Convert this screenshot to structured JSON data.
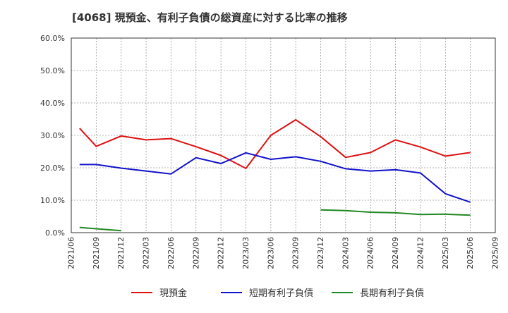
{
  "chart_data": {
    "type": "line",
    "title": "[4068]  現預金、有利子負債の総資産に対する比率の推移",
    "xlabel": "",
    "ylabel": "",
    "ylim": [
      0,
      60
    ],
    "y_ticks": [
      "0.0%",
      "10.0%",
      "20.0%",
      "30.0%",
      "40.0%",
      "50.0%",
      "60.0%"
    ],
    "y_tick_values": [
      0,
      10,
      20,
      30,
      40,
      50,
      60
    ],
    "x_ticks": [
      "2021/06",
      "2021/09",
      "2021/12",
      "2022/03",
      "2022/06",
      "2022/09",
      "2022/12",
      "2023/03",
      "2023/06",
      "2023/09",
      "2023/12",
      "2024/03",
      "2024/06",
      "2024/09",
      "2024/12",
      "2025/03",
      "2025/06",
      "2025/09"
    ],
    "x_tick_index": [
      0,
      3,
      6,
      9,
      12,
      15,
      18,
      21,
      24,
      27,
      30,
      33,
      36,
      39,
      42,
      45,
      48,
      51
    ],
    "grid": true,
    "legend_position": "bottom",
    "series": [
      {
        "name": "現預金",
        "color": "#dd1111",
        "points": [
          [
            1,
            32.2
          ],
          [
            3,
            26.6
          ],
          [
            6,
            29.8
          ],
          [
            9,
            28.6
          ],
          [
            12,
            29.0
          ],
          [
            15,
            26.5
          ],
          [
            18,
            23.8
          ],
          [
            21,
            19.8
          ],
          [
            24,
            30.0
          ],
          [
            27,
            34.8
          ],
          [
            30,
            29.6
          ],
          [
            33,
            23.2
          ],
          [
            36,
            24.7
          ],
          [
            39,
            28.6
          ],
          [
            42,
            26.4
          ],
          [
            45,
            23.6
          ],
          [
            48,
            24.7
          ]
        ]
      },
      {
        "name": "短期有利子負債",
        "color": "#1111cc",
        "points": [
          [
            1,
            21.0
          ],
          [
            3,
            21.0
          ],
          [
            6,
            19.9
          ],
          [
            9,
            19.0
          ],
          [
            12,
            18.1
          ],
          [
            15,
            23.1
          ],
          [
            18,
            21.3
          ],
          [
            21,
            24.6
          ],
          [
            24,
            22.6
          ],
          [
            27,
            23.4
          ],
          [
            30,
            22.0
          ],
          [
            33,
            19.7
          ],
          [
            36,
            19.0
          ],
          [
            39,
            19.4
          ],
          [
            42,
            18.4
          ],
          [
            45,
            12.0
          ],
          [
            48,
            9.4
          ]
        ]
      },
      {
        "name": "長期有利子負債",
        "color": "#228822",
        "points": [
          [
            1,
            1.6
          ],
          [
            3,
            1.2
          ],
          [
            6,
            0.6
          ],
          [
            null,
            null
          ],
          [
            30,
            7.0
          ],
          [
            33,
            6.8
          ],
          [
            36,
            6.3
          ],
          [
            39,
            6.1
          ],
          [
            42,
            5.6
          ],
          [
            45,
            5.7
          ],
          [
            48,
            5.4
          ]
        ]
      }
    ]
  }
}
